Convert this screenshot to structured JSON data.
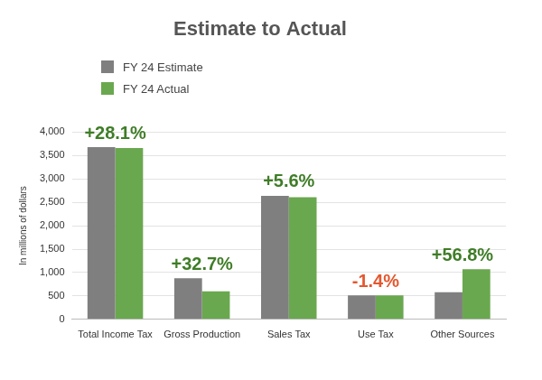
{
  "chart_data": {
    "type": "bar",
    "title": "Estimate to Actual",
    "y_label": "In millions of dollars",
    "categories": [
      "Total Income Tax",
      "Gross Production",
      "Sales Tax",
      "Use Tax",
      "Other Sources"
    ],
    "series": [
      {
        "name": "FY 24 Estimate",
        "color": "#7f7f7f",
        "values": [
          3680,
          880,
          2640,
          510,
          580
        ]
      },
      {
        "name": "FY 24 Actual",
        "color": "#6aa84f",
        "values": [
          3660,
          600,
          2610,
          510,
          1070
        ]
      }
    ],
    "annotations": [
      {
        "category": "Total Income Tax",
        "text": "+28.1%",
        "color": "#3f7d27"
      },
      {
        "category": "Gross Production",
        "text": "+32.7%",
        "color": "#3f7d27"
      },
      {
        "category": "Sales Tax",
        "text": "+5.6%",
        "color": "#3f7d27"
      },
      {
        "category": "Use Tax",
        "text": "-1.4%",
        "color": "#e4572e"
      },
      {
        "category": "Other Sources",
        "text": "+56.8%",
        "color": "#3f7d27"
      }
    ],
    "ylim": [
      0,
      4000
    ],
    "yticks": [
      0,
      500,
      {
        "value": 1000,
        "label": "1,000"
      },
      {
        "value": 1500,
        "label": "1,500"
      },
      {
        "value": 2000,
        "label": "2,000"
      },
      {
        "value": 2500,
        "label": "2,500"
      },
      {
        "value": 3000,
        "label": "3,000"
      },
      {
        "value": 3500,
        "label": "3,500"
      },
      {
        "value": 4000,
        "label": "4,000"
      }
    ],
    "grid": true,
    "legend": "top-left"
  }
}
